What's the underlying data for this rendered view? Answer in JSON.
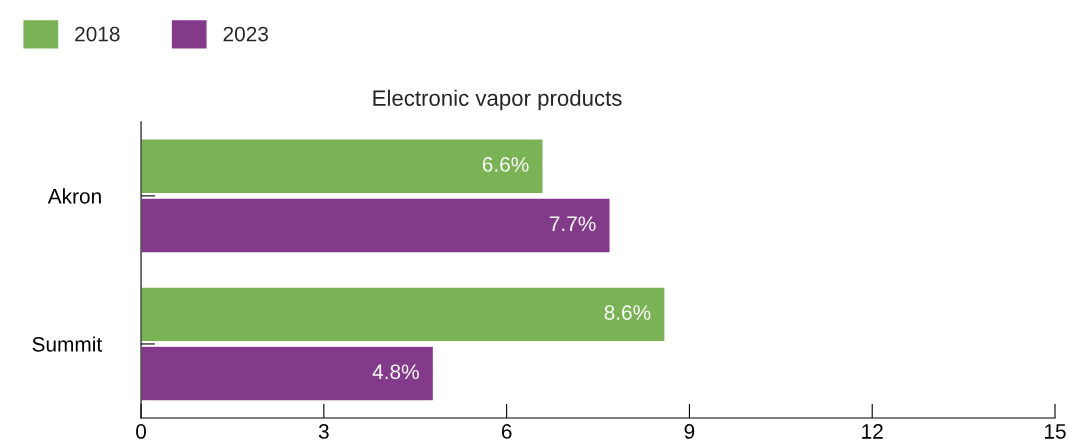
{
  "chart_data": {
    "type": "bar",
    "orientation": "horizontal",
    "title": "Electronic vapor products",
    "categories": [
      "Akron",
      "Summit"
    ],
    "series": [
      {
        "name": "2018",
        "color": "#7ab356",
        "values": [
          6.6,
          8.6
        ],
        "value_labels": [
          "6.6%",
          "8.6%"
        ]
      },
      {
        "name": "2023",
        "color": "#843a8b",
        "values": [
          7.7,
          4.8
        ],
        "value_labels": [
          "7.7%",
          "4.8%"
        ]
      }
    ],
    "xlim": [
      0,
      15
    ],
    "xticks": [
      0,
      3,
      6,
      9,
      12,
      15
    ],
    "grid": false,
    "legend": "top left"
  }
}
